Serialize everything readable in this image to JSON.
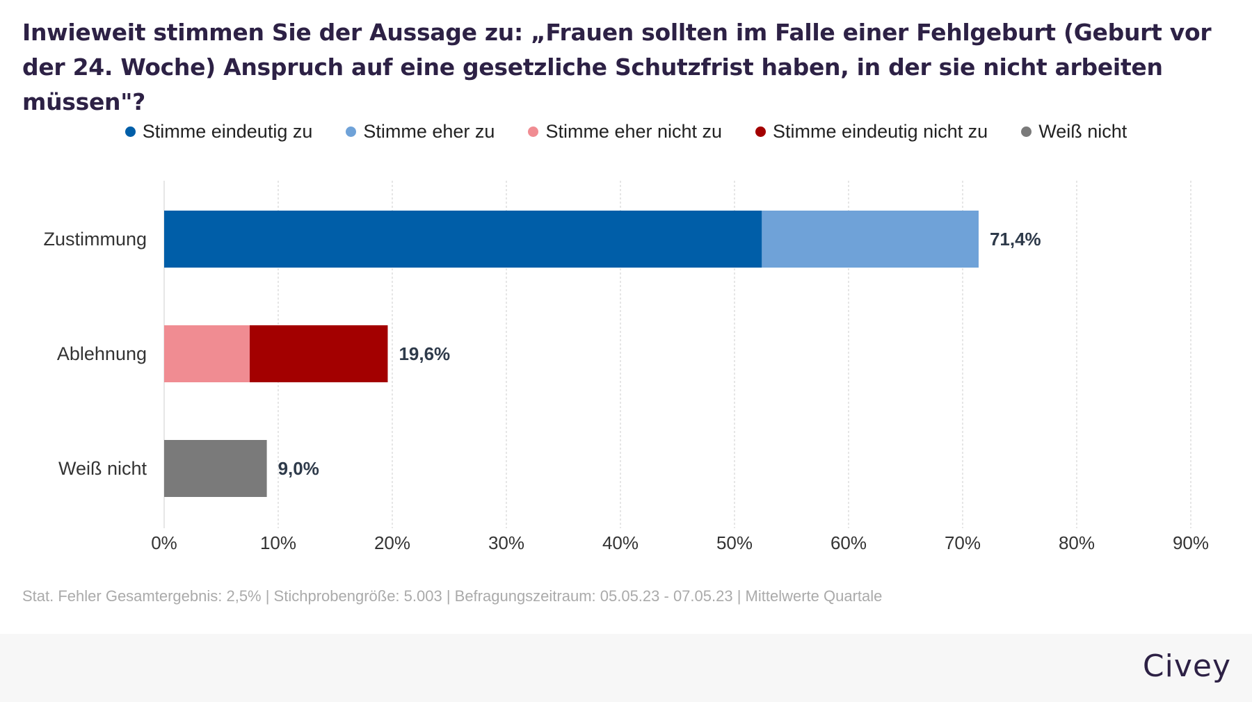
{
  "title": "Inwieweit stimmen Sie der Aussage zu: „Frauen sollten im Falle einer Fehlgeburt (Geburt vor der 24. Woche) Anspruch auf eine gesetzliche Schutzfrist haben, in der sie nicht arbeiten müssen\"?",
  "footer_note": "Stat. Fehler Gesamtergebnis: 2,5% | Stichprobengröße: 5.003 | Befragungszeitraum: 05.05.23 - 07.05.23 | Mittelwerte Quartale",
  "brand": "Civey",
  "chart_data": {
    "type": "bar",
    "orientation": "horizontal",
    "stacked": true,
    "categories": [
      "Zustimmung",
      "Ablehnung",
      "Weiß nicht"
    ],
    "series": [
      {
        "name": "Stimme eindeutig zu",
        "color": "#005ea8",
        "values": [
          52.4,
          0,
          0
        ]
      },
      {
        "name": "Stimme eher zu",
        "color": "#6fa2d8",
        "values": [
          19.0,
          0,
          0
        ]
      },
      {
        "name": "Stimme eher nicht zu",
        "color": "#f08c92",
        "values": [
          0,
          7.5,
          0
        ]
      },
      {
        "name": "Stimme eindeutig nicht zu",
        "color": "#a30000",
        "values": [
          0,
          12.1,
          0
        ]
      },
      {
        "name": "Weiß nicht",
        "color": "#7a7a7a",
        "values": [
          0,
          0,
          9.0
        ]
      }
    ],
    "totals": [
      "71,4%",
      "19,6%",
      "9,0%"
    ],
    "xlim": [
      0,
      90
    ],
    "xticks": [
      "0%",
      "10%",
      "20%",
      "30%",
      "40%",
      "50%",
      "60%",
      "70%",
      "80%",
      "90%"
    ],
    "grid": true,
    "legend_position": "top"
  }
}
